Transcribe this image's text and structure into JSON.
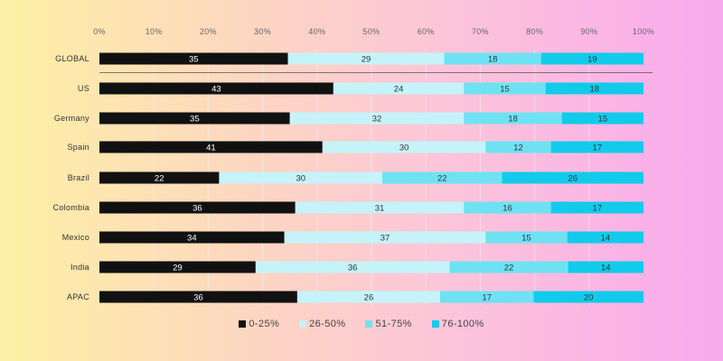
{
  "chart_data": {
    "type": "bar",
    "orientation": "horizontal",
    "stacked": true,
    "title": "",
    "xlabel": "",
    "ylabel": "",
    "xlim": [
      0,
      100
    ],
    "x_ticks": [
      "0%",
      "10%",
      "20%",
      "30%",
      "40%",
      "50%",
      "60%",
      "70%",
      "80%",
      "90%",
      "100%"
    ],
    "x_axis_position": "top",
    "grid": true,
    "legend_position": "bottom-center",
    "categories": [
      "GLOBAL",
      "US",
      "Germany",
      "Spain",
      "Brazil",
      "Colombia",
      "Mexico",
      "India",
      "APAC"
    ],
    "series": [
      {
        "name": "0-25%",
        "color": "#111111",
        "values": [
          35,
          43,
          35,
          41,
          22,
          36,
          34,
          29,
          36
        ]
      },
      {
        "name": "26-50%",
        "color": "#c5f3f9",
        "values": [
          29,
          24,
          32,
          30,
          30,
          31,
          37,
          36,
          26
        ]
      },
      {
        "name": "51-75%",
        "color": "#6ee2f2",
        "values": [
          18,
          15,
          18,
          12,
          22,
          16,
          15,
          22,
          17
        ]
      },
      {
        "name": "76-100%",
        "color": "#12cbea",
        "values": [
          19,
          18,
          15,
          17,
          26,
          17,
          14,
          14,
          20
        ]
      }
    ]
  }
}
